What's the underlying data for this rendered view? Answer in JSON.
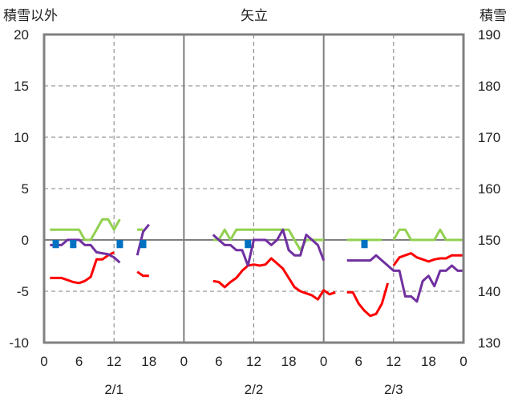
{
  "chart_data": {
    "type": "line",
    "title": "矢立",
    "ylabel_left": "積雪以外",
    "ylabel_right": "積雪",
    "ylim_left": [
      -10,
      20
    ],
    "ylim_right": [
      130,
      190
    ],
    "yticks_left": [
      "20",
      "15",
      "10",
      "5",
      "0",
      "-5",
      "-10"
    ],
    "yticks_right": [
      "190",
      "180",
      "170",
      "160",
      "150",
      "140",
      "130"
    ],
    "xlim_hours": [
      0,
      72
    ],
    "xticks": [
      "0",
      "6",
      "12",
      "18",
      "0",
      "6",
      "12",
      "18",
      "0",
      "6",
      "12",
      "18",
      "0"
    ],
    "day_labels": [
      "2/1",
      "2/2",
      "2/3"
    ],
    "grid": true,
    "series": [
      {
        "color": "#92d050",
        "axis": "left",
        "values": [
          [
            1,
            1
          ],
          [
            2,
            1
          ],
          [
            3,
            1
          ],
          [
            4,
            1
          ],
          [
            5,
            1
          ],
          [
            6,
            1
          ],
          [
            7,
            0
          ],
          [
            8,
            0
          ],
          [
            9,
            1
          ],
          [
            10,
            2
          ],
          [
            11,
            2
          ],
          [
            12,
            1
          ],
          [
            13,
            2
          ],
          null,
          [
            16,
            1
          ],
          [
            17,
            1
          ],
          null,
          [
            29,
            0
          ],
          [
            30,
            0
          ],
          [
            31,
            1
          ],
          [
            32,
            0
          ],
          [
            33,
            1
          ],
          [
            34,
            1
          ],
          [
            35,
            1
          ],
          [
            36,
            1
          ],
          [
            37,
            1
          ],
          [
            38,
            1
          ],
          [
            39,
            1
          ],
          [
            40,
            1
          ],
          [
            41,
            1
          ],
          [
            42,
            1
          ],
          [
            43,
            0
          ],
          [
            44,
            -1
          ],
          [
            45,
            0
          ],
          [
            46,
            0
          ],
          [
            47,
            0
          ],
          [
            48,
            0
          ],
          null,
          [
            52,
            0
          ],
          [
            53,
            0
          ],
          [
            54,
            0
          ],
          [
            55,
            0
          ],
          [
            56,
            0
          ],
          [
            57,
            0
          ],
          [
            58,
            0
          ],
          null,
          [
            60,
            0
          ],
          [
            61,
            1
          ],
          [
            62,
            1
          ],
          [
            63,
            0
          ],
          [
            64,
            0
          ],
          [
            65,
            0
          ],
          [
            66,
            0
          ],
          [
            67,
            0
          ],
          [
            68,
            1
          ],
          [
            69,
            0
          ],
          [
            70,
            0
          ],
          [
            71,
            0
          ],
          [
            72,
            0
          ]
        ]
      },
      {
        "color": "#ff0000",
        "axis": "left",
        "values": [
          [
            1,
            -3.7
          ],
          [
            2,
            -3.7
          ],
          [
            3,
            -3.7
          ],
          [
            4,
            -3.9
          ],
          [
            5,
            -4.1
          ],
          [
            6,
            -4.2
          ],
          [
            7,
            -4.0
          ],
          [
            8,
            -3.6
          ],
          [
            9,
            -1.9
          ],
          [
            10,
            -1.9
          ],
          [
            11,
            -1.5
          ],
          [
            12,
            -1.2
          ],
          null,
          [
            16,
            -3.1
          ],
          [
            17,
            -3.5
          ],
          [
            18,
            -3.5
          ],
          null,
          [
            29,
            -4.0
          ],
          [
            30,
            -4.1
          ],
          [
            31,
            -4.6
          ],
          [
            32,
            -4.1
          ],
          [
            33,
            -3.7
          ],
          [
            34,
            -3.0
          ],
          [
            35,
            -2.5
          ],
          [
            36,
            -2.4
          ],
          [
            37,
            -2.5
          ],
          [
            38,
            -2.4
          ],
          [
            39,
            -1.8
          ],
          [
            40,
            -2.3
          ],
          [
            41,
            -2.8
          ],
          [
            42,
            -3.7
          ],
          [
            43,
            -4.6
          ],
          [
            44,
            -5.0
          ],
          [
            45,
            -5.2
          ],
          [
            46,
            -5.4
          ],
          [
            47,
            -5.8
          ],
          [
            48,
            -4.9
          ],
          [
            49,
            -5.3
          ],
          [
            50,
            -5.1
          ],
          null,
          [
            52,
            -5.1
          ],
          [
            53,
            -5.1
          ],
          [
            54,
            -6.2
          ],
          [
            55,
            -6.9
          ],
          [
            56,
            -7.4
          ],
          [
            57,
            -7.2
          ],
          [
            58,
            -6.2
          ],
          [
            59,
            -4.2
          ],
          null,
          [
            60,
            -2.5
          ],
          [
            61,
            -1.7
          ],
          [
            62,
            -1.5
          ],
          [
            63,
            -1.3
          ],
          [
            64,
            -1.7
          ],
          [
            65,
            -1.9
          ],
          [
            66,
            -2.1
          ],
          [
            67,
            -1.9
          ],
          [
            68,
            -1.8
          ],
          [
            69,
            -1.8
          ],
          [
            70,
            -1.5
          ],
          [
            71,
            -1.5
          ],
          [
            72,
            -1.5
          ]
        ]
      },
      {
        "color": "#7030a0",
        "axis": "left",
        "values": [
          [
            1,
            -0.5
          ],
          [
            2,
            -0.5
          ],
          [
            3,
            -0.5
          ],
          [
            4,
            0
          ],
          [
            5,
            0
          ],
          [
            6,
            0
          ],
          [
            7,
            -0.5
          ],
          [
            8,
            -0.5
          ],
          [
            9,
            -1.2
          ],
          [
            10,
            -1.3
          ],
          [
            11,
            -1.4
          ],
          [
            12,
            -1.7
          ],
          [
            13,
            -2.2
          ],
          null,
          [
            16,
            -1.5
          ],
          [
            17,
            0.8
          ],
          [
            18,
            1.5
          ],
          null,
          [
            29,
            0.5
          ],
          [
            30,
            0
          ],
          [
            31,
            -0.5
          ],
          [
            32,
            -0.5
          ],
          [
            33,
            -1
          ],
          [
            34,
            -1
          ],
          [
            35,
            -2.5
          ],
          [
            36,
            0
          ],
          [
            37,
            0
          ],
          [
            38,
            0
          ],
          [
            39,
            -0.5
          ],
          [
            40,
            0
          ],
          [
            41,
            1
          ],
          [
            42,
            -1
          ],
          [
            43,
            -1.5
          ],
          [
            44,
            -1.5
          ],
          [
            45,
            0.5
          ],
          [
            46,
            0
          ],
          [
            47,
            -0.5
          ],
          [
            48,
            -2
          ]
        ]
      },
      {
        "color": "#7030a0",
        "axis": "right",
        "values": [
          [
            52,
            146
          ],
          [
            53,
            146
          ],
          [
            54,
            146
          ],
          [
            55,
            146
          ],
          [
            56,
            146
          ],
          [
            57,
            147
          ],
          [
            58,
            146
          ],
          [
            59,
            145
          ],
          [
            60,
            144
          ],
          [
            61,
            144
          ],
          [
            62,
            139
          ],
          [
            63,
            139
          ],
          [
            64,
            138
          ],
          [
            65,
            142
          ],
          [
            66,
            143
          ],
          [
            67,
            141
          ],
          [
            68,
            144
          ],
          [
            69,
            144
          ],
          [
            70,
            145
          ],
          [
            71,
            144
          ],
          [
            72,
            144
          ]
        ]
      },
      {
        "color": "#0070c0",
        "type": "bar",
        "axis": "left",
        "values": [
          [
            2,
            -0.8
          ],
          [
            5,
            -0.8
          ],
          [
            13,
            -0.8
          ],
          [
            17,
            -0.8
          ],
          [
            35,
            -0.8
          ],
          [
            55,
            -0.8
          ]
        ]
      }
    ]
  }
}
